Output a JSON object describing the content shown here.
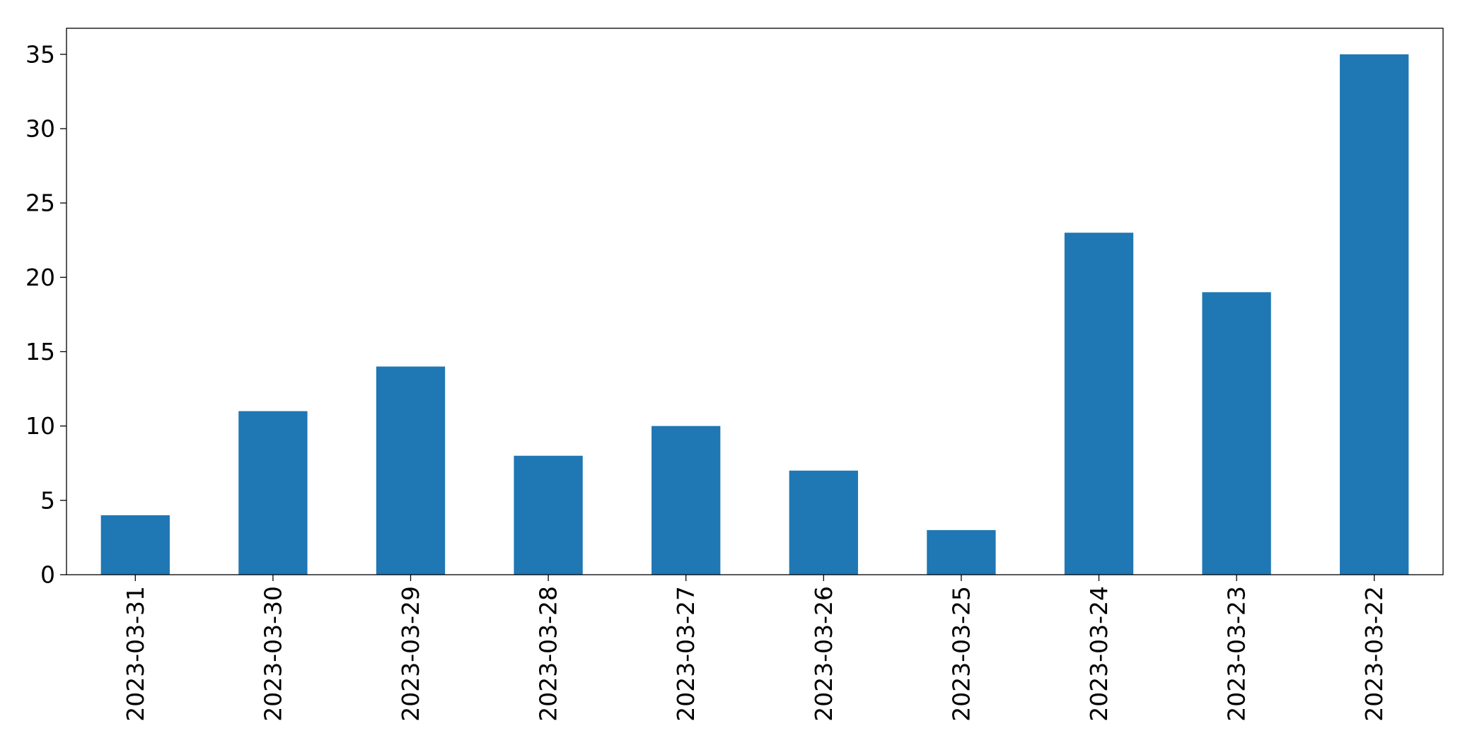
{
  "chart_data": {
    "type": "bar",
    "categories": [
      "2023-03-31",
      "2023-03-30",
      "2023-03-29",
      "2023-03-28",
      "2023-03-27",
      "2023-03-26",
      "2023-03-25",
      "2023-03-24",
      "2023-03-23",
      "2023-03-22"
    ],
    "values": [
      4,
      11,
      14,
      8,
      10,
      7,
      3,
      23,
      19,
      35
    ],
    "title": "",
    "xlabel": "",
    "ylabel": "",
    "ylim": [
      0,
      36.75
    ],
    "yticks": [
      0,
      5,
      10,
      15,
      20,
      25,
      30,
      35
    ],
    "grid": false,
    "legend": "none",
    "bar_color": "#1f77b4",
    "axis_color": "#000000"
  }
}
